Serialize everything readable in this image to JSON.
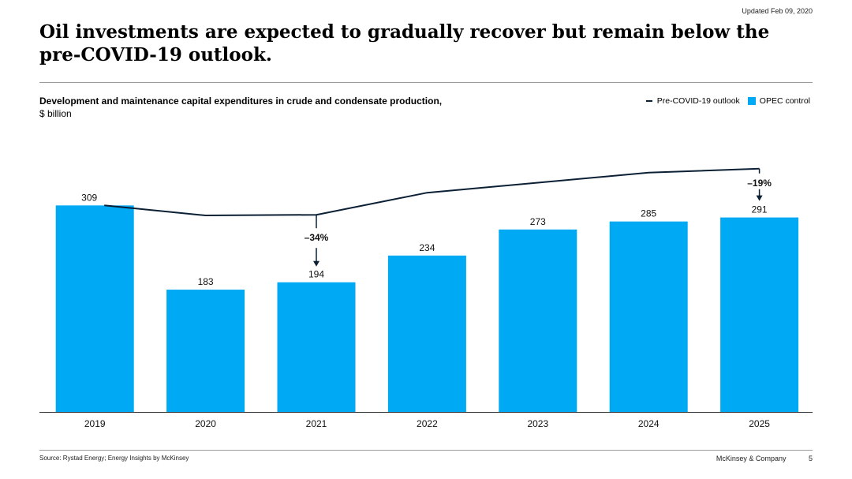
{
  "header": {
    "updated": "Updated Feb 09, 2020",
    "title": "Oil investments are expected to gradually recover but remain below the pre-COVID-19 outlook."
  },
  "chart_data": {
    "type": "bar",
    "title": "Development and maintenance capital expenditures in crude and condensate production,",
    "unit": "$ billion",
    "categories": [
      "2019",
      "2020",
      "2021",
      "2022",
      "2023",
      "2024",
      "2025"
    ],
    "series": [
      {
        "name": "OPEC control",
        "type": "bar",
        "values": [
          309,
          183,
          194,
          234,
          273,
          285,
          291
        ]
      },
      {
        "name": "Pre-COVID-19 outlook",
        "type": "line",
        "values": [
          309,
          294,
          295,
          328,
          343,
          358,
          364
        ]
      }
    ],
    "ylim": [
      0,
      400
    ],
    "annotations": [
      {
        "category": "2021",
        "label": "–34%"
      },
      {
        "category": "2025",
        "label": "–19%"
      }
    ],
    "colors": {
      "bar": "#00a9f4",
      "line": "#0b1f35"
    }
  },
  "legend": {
    "line_label": "Pre-COVID-19 outlook",
    "bar_label": "OPEC control"
  },
  "footer": {
    "source": "Source: Rystad Energy; Energy Insights by McKinsey",
    "company": "McKinsey & Company",
    "page": "5"
  }
}
